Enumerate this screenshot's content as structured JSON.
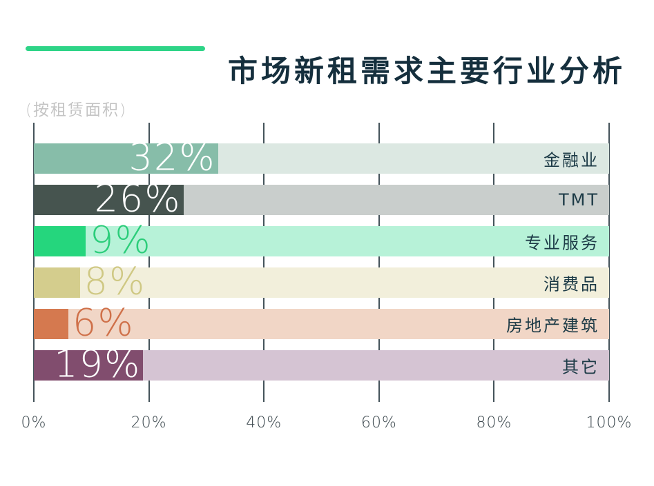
{
  "header": {
    "title": "市场新租需求主要行业分析",
    "subtitle": "(按租赁面积)",
    "accent_color": "#2ed487"
  },
  "chart_data": {
    "type": "bar",
    "orientation": "horizontal",
    "title": "市场新租需求主要行业分析",
    "subtitle": "(按租赁面积)",
    "unit": "%",
    "xlim": [
      0,
      100
    ],
    "x_ticks": [
      "0%",
      "20%",
      "40%",
      "60%",
      "80%",
      "100%"
    ],
    "grid": true,
    "legend": false,
    "categories": [
      "金融业",
      "TMT",
      "专业服务",
      "消费品",
      "房地产建筑",
      "其它"
    ],
    "values": [
      32,
      26,
      9,
      8,
      6,
      19
    ],
    "bars": [
      {
        "label": "金融业",
        "value": 32,
        "value_label": "32%",
        "fill_color": "#87bda9",
        "track_color": "#dce8e2",
        "value_label_placement": "inside",
        "value_label_color": "#ffffff"
      },
      {
        "label": "TMT",
        "value": 26,
        "value_label": "26%",
        "fill_color": "#46544f",
        "track_color": "#c9cecc",
        "value_label_placement": "inside",
        "value_label_color": "#ffffff"
      },
      {
        "label": "专业服务",
        "value": 9,
        "value_label": "9%",
        "fill_color": "#25d67d",
        "track_color": "#b7f2d8",
        "value_label_placement": "outside",
        "value_label_color": "#2bcd7a"
      },
      {
        "label": "消费品",
        "value": 8,
        "value_label": "8%",
        "fill_color": "#d4cd8d",
        "track_color": "#f2efdb",
        "value_label_placement": "outside",
        "value_label_color": "#cfc883"
      },
      {
        "label": "房地产建筑",
        "value": 6,
        "value_label": "6%",
        "fill_color": "#d5794f",
        "track_color": "#f1d6c6",
        "value_label_placement": "outside",
        "value_label_color": "#cf7049"
      },
      {
        "label": "其它",
        "value": 19,
        "value_label": "19%",
        "fill_color": "#814d6e",
        "track_color": "#d5c4d3",
        "value_label_placement": "inside",
        "value_label_color": "#ffffff"
      }
    ],
    "style": {
      "category_label_color": "#1c3a46",
      "axis_tick_color": "#39454b",
      "gridline_color": "#44535a"
    }
  }
}
